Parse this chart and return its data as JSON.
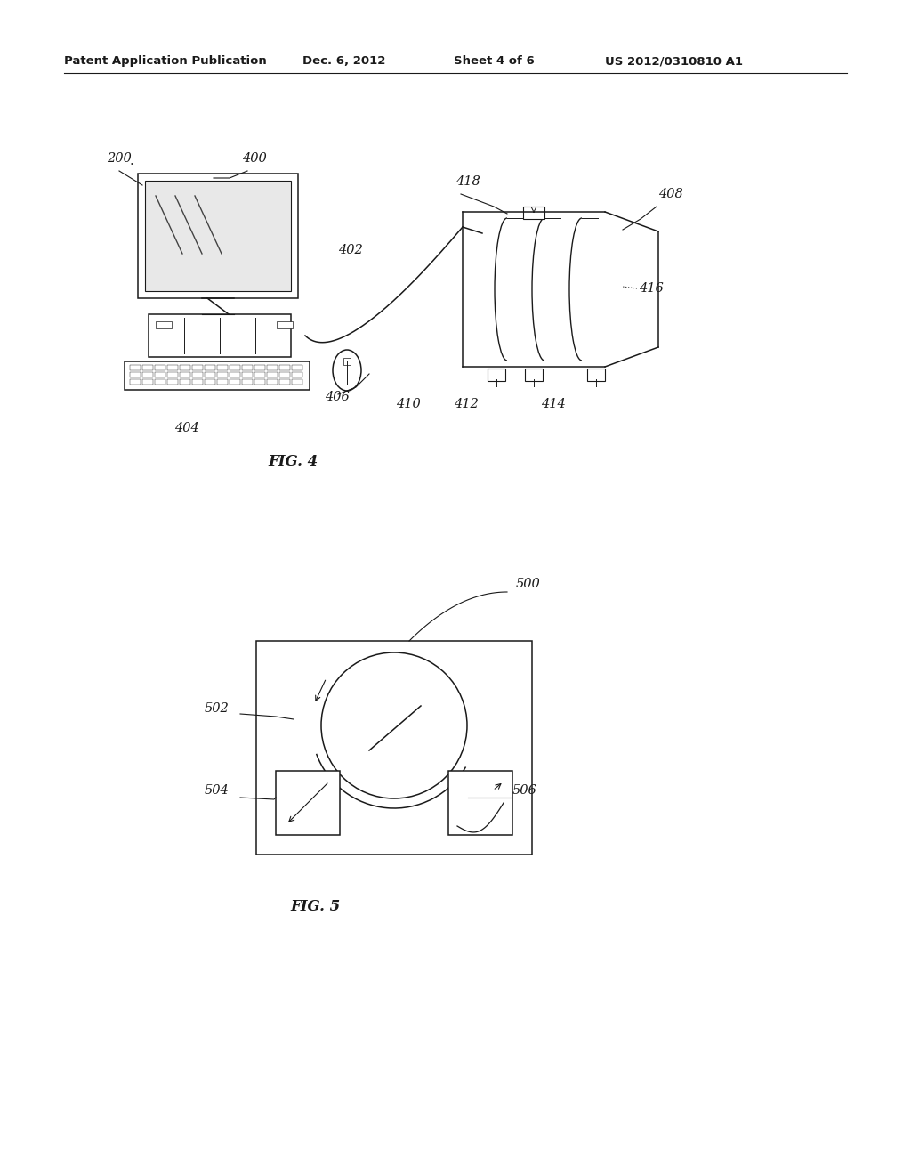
{
  "bg_color": "#ffffff",
  "header_text": "Patent Application Publication",
  "header_date": "Dec. 6, 2012",
  "header_sheet": "Sheet 4 of 6",
  "header_patent": "US 2012/0310810 A1",
  "fig4_label": "FIG. 4",
  "fig5_label": "FIG. 5"
}
